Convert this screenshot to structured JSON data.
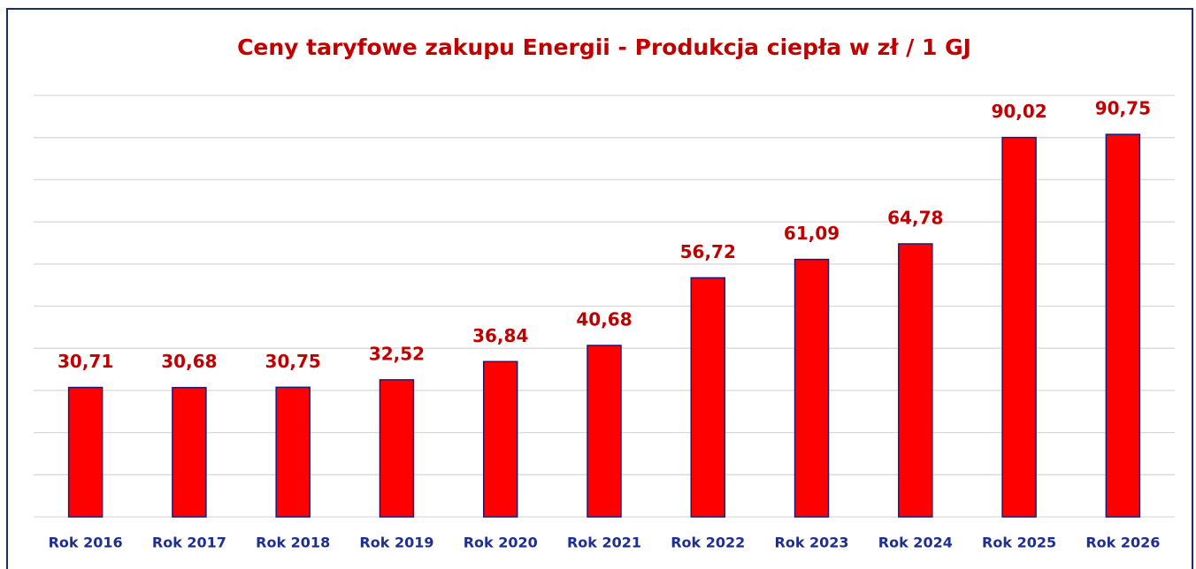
{
  "chart_data": {
    "type": "bar",
    "title": "Ceny taryfowe zakupu Energii - Produkcja ciepła w zł / 1 GJ",
    "categories": [
      "Rok 2016",
      "Rok 2017",
      "Rok 2018",
      "Rok 2019",
      "Rok 2020",
      "Rok 2021",
      "Rok 2022",
      "Rok 2023",
      "Rok 2024",
      "Rok 2025",
      "Rok 2026"
    ],
    "values": [
      30.71,
      30.68,
      30.75,
      32.52,
      36.84,
      40.68,
      56.72,
      61.09,
      64.78,
      90.02,
      90.75
    ],
    "value_labels": [
      "30,71",
      "30,68",
      "30,75",
      "32,52",
      "36,84",
      "40,68",
      "56,72",
      "61,09",
      "64,78",
      "90,02",
      "90,75"
    ],
    "color": "#ff0000",
    "ylim": [
      0,
      100
    ],
    "yticks": [
      0,
      10,
      20,
      30,
      40,
      50,
      60,
      70,
      80,
      90,
      100
    ],
    "grid": true
  }
}
